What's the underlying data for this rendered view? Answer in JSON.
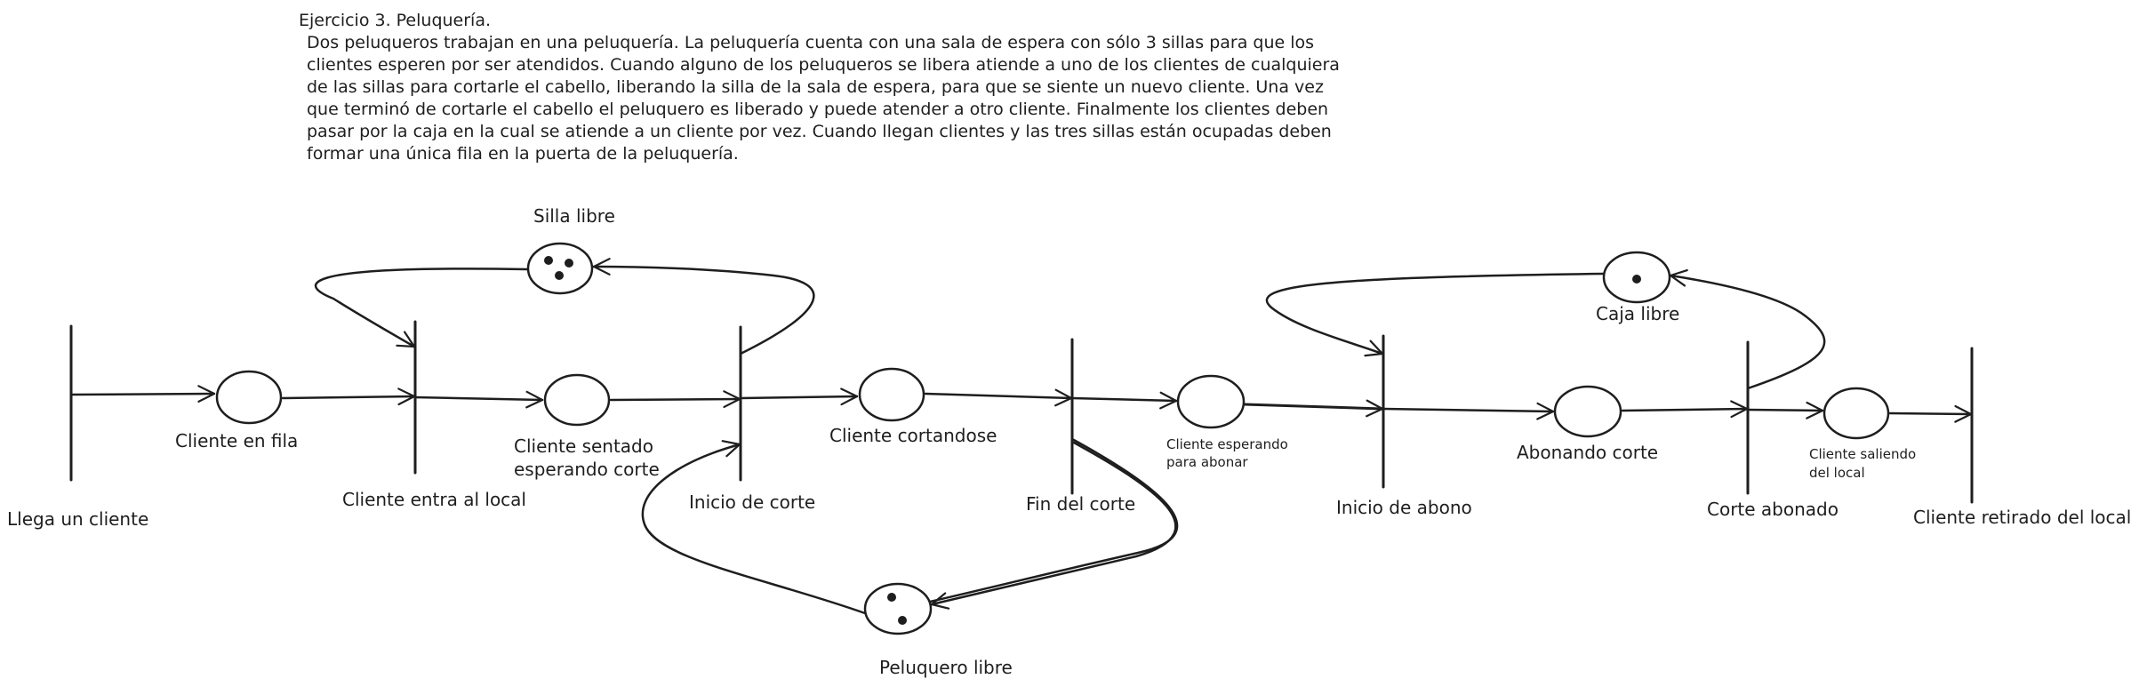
{
  "problem": {
    "title": "Ejercicio 3. Peluquería.",
    "text": "Dos peluqueros trabajan en una peluquería. La peluquería cuenta con una sala de espera con sólo 3 sillas para que los\nclientes esperen por ser atendidos. Cuando alguno de los peluqueros se libera atiende a uno de los clientes de cualquiera\nde las sillas para cortarle el cabello, liberando la silla de la sala de espera, para que se siente un nuevo cliente. Una vez\nque terminó de cortarle el cabello el peluquero es liberado y puede atender a otro cliente. Finalmente los clientes deben\npasar por la caja en la cual se atiende a un cliente por vez. Cuando llegan clientes y las tres sillas están ocupadas deben\nformar una única fila en la puerta de la peluquería."
  },
  "places": {
    "cliente_en_fila": {
      "label": "Cliente en fila",
      "tokens": 0
    },
    "silla_libre": {
      "label": "Silla libre",
      "tokens": 3
    },
    "cliente_sentado": {
      "label1": "Cliente sentado",
      "label2": "esperando corte",
      "tokens": 0
    },
    "cliente_cortandose": {
      "label": "Cliente cortandose",
      "tokens": 0
    },
    "peluquero_libre": {
      "label": "Peluquero libre",
      "tokens": 2
    },
    "cliente_esperando_abonar": {
      "label1": "Cliente esperando",
      "label2": "para abonar",
      "tokens": 0
    },
    "caja_libre": {
      "label": "Caja libre",
      "tokens": 1
    },
    "abonando_corte": {
      "label": "Abonando corte",
      "tokens": 0
    },
    "cliente_saliendo": {
      "label1": "Cliente saliendo",
      "label2": "del local",
      "tokens": 0
    }
  },
  "transitions": {
    "llega_un_cliente": "Llega un cliente",
    "cliente_entra": "Cliente entra al local",
    "inicio_corte": "Inicio de corte",
    "fin_corte": "Fin del corte",
    "inicio_abono": "Inicio de abono",
    "corte_abonado": "Corte abonado",
    "cliente_retirado": "Cliente retirado del local"
  }
}
